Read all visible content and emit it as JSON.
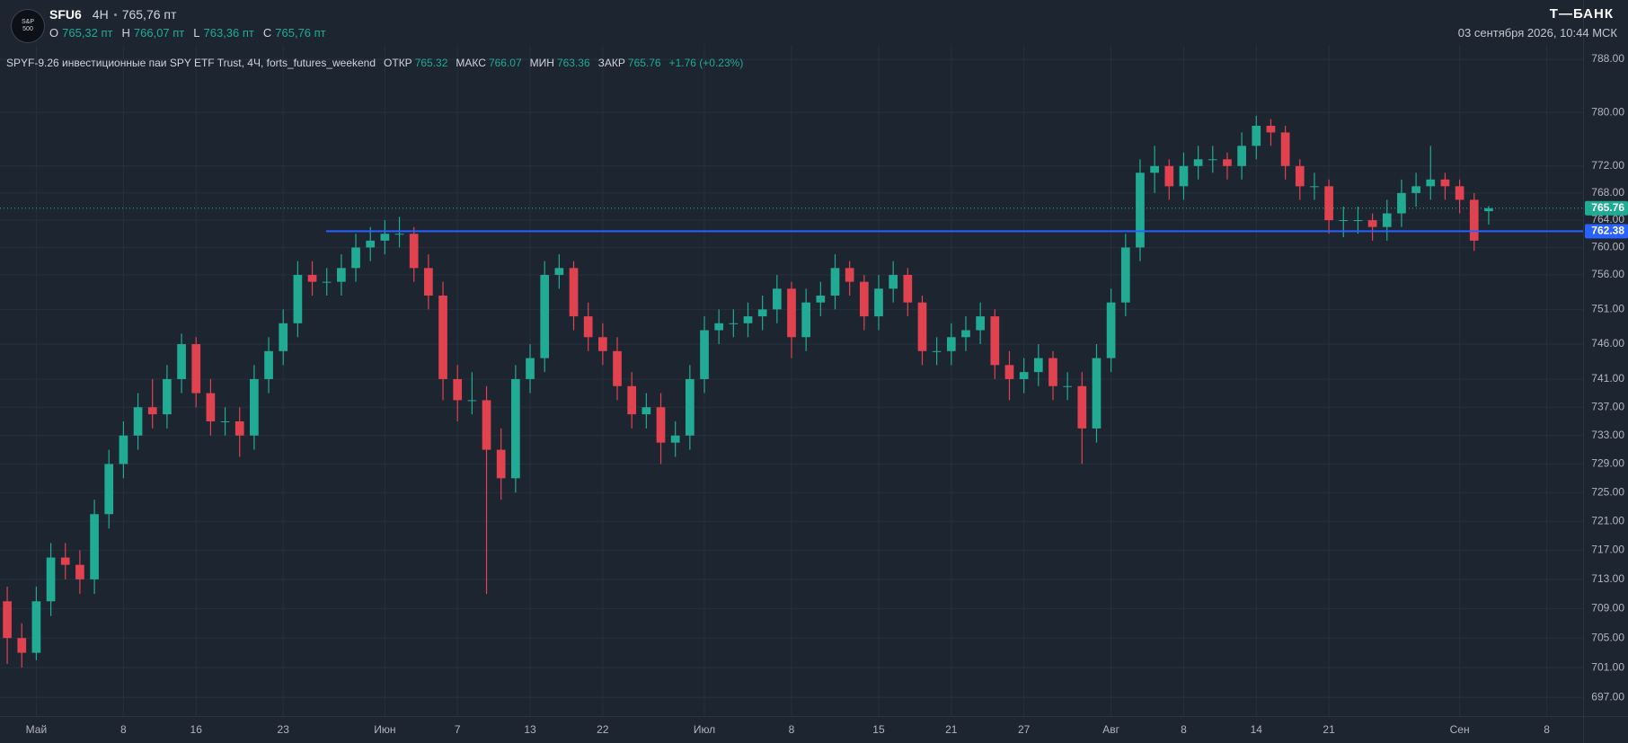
{
  "header": {
    "logo_text": "S&P 500",
    "ticker": "SFU6",
    "interval": "4H",
    "price": "765,76 пт",
    "ohlc": [
      {
        "label": "O",
        "value": "765,32 пт"
      },
      {
        "label": "H",
        "value": "766,07 пт"
      },
      {
        "label": "L",
        "value": "763,36 пт"
      },
      {
        "label": "C",
        "value": "765,76 пт"
      }
    ],
    "brand": "Т—БАНК",
    "datetime": "03 сентября 2026, 10:44 МСК"
  },
  "legend": {
    "title": "SPYF-9.26 инвестиционные паи SPY ETF Trust, 4Ч, forts_futures_weekend",
    "open_label": "ОТКР",
    "high_label": "МАКС",
    "low_label": "МИН",
    "close_label": "ЗАКР",
    "change": "+1.76 (+0.23%)"
  },
  "chart_data": {
    "type": "candlestick",
    "log_scale": true,
    "grid": true,
    "up_color": "#22ab94",
    "down_color": "#e0424f",
    "categories": [
      null,
      null,
      "Май",
      null,
      null,
      null,
      null,
      null,
      "8",
      null,
      null,
      null,
      null,
      "16",
      null,
      null,
      null,
      null,
      null,
      "23",
      null,
      null,
      null,
      null,
      null,
      null,
      "Июн",
      null,
      null,
      null,
      null,
      "7",
      null,
      null,
      null,
      null,
      "13",
      null,
      null,
      null,
      null,
      "22",
      null,
      null,
      null,
      null,
      null,
      null,
      "Июл",
      null,
      null,
      null,
      null,
      null,
      "8",
      null,
      null,
      null,
      null,
      null,
      "15",
      null,
      null,
      null,
      null,
      "21",
      null,
      null,
      null,
      null,
      "27",
      null,
      null,
      null,
      null,
      null,
      "Авг",
      null,
      null,
      null,
      null,
      "8",
      null,
      null,
      null,
      null,
      "14",
      null,
      null,
      null,
      null,
      "21",
      null,
      null,
      null,
      null,
      null,
      null,
      null,
      null,
      "Сен",
      null,
      null,
      null,
      null,
      null,
      "8",
      null,
      null
    ],
    "open": [
      710,
      705,
      703,
      710,
      716,
      715,
      713,
      722,
      729,
      733,
      737,
      736,
      741,
      746,
      739,
      735,
      735,
      733,
      741,
      745,
      749,
      756,
      755,
      755,
      757,
      760,
      761,
      762,
      762,
      757,
      753,
      741,
      738,
      738,
      731,
      727,
      741,
      744,
      756,
      757,
      750,
      747,
      745,
      740,
      736,
      737,
      732,
      733,
      741,
      748,
      749,
      749,
      750,
      751,
      754,
      747,
      752,
      753,
      757,
      755,
      750,
      754,
      756,
      752,
      745,
      745,
      747,
      748,
      750,
      743,
      741,
      742,
      744,
      740,
      740,
      734,
      744,
      752,
      760,
      771,
      772,
      769,
      772,
      773,
      773,
      772,
      775,
      778,
      777,
      772,
      769,
      769,
      764,
      764,
      764,
      763,
      765,
      768,
      769,
      770,
      769,
      767,
      765.32,
      null,
      null,
      null,
      null,
      null,
      null
    ],
    "high": [
      712,
      707,
      712,
      718,
      718,
      717,
      724,
      731,
      735,
      739,
      741,
      743,
      747.5,
      747,
      741,
      737,
      737,
      743,
      747,
      751,
      758,
      758,
      757,
      759,
      762,
      763,
      764,
      764.5,
      763,
      759,
      755,
      743,
      742,
      740,
      734,
      743,
      746,
      758,
      759,
      758,
      752,
      749,
      747,
      742,
      739,
      739,
      735,
      743,
      750,
      751,
      751,
      752,
      753,
      756,
      755,
      754,
      755,
      759,
      758,
      756,
      756,
      758,
      757,
      753,
      747,
      749,
      750,
      752,
      751,
      745,
      744,
      746,
      745,
      742,
      742,
      746,
      754,
      762,
      773,
      775,
      773,
      774,
      775,
      775,
      774,
      777,
      779.5,
      779,
      778,
      773,
      771,
      770,
      766,
      766,
      765,
      767,
      770,
      771,
      775,
      771,
      770,
      768,
      766.07,
      null,
      null,
      null,
      null,
      null,
      null
    ],
    "low": [
      701.5,
      701,
      702,
      708,
      713,
      711,
      711,
      720,
      727,
      731,
      734,
      734,
      739,
      737,
      733,
      733,
      730,
      731,
      739,
      743,
      747,
      753,
      753,
      753,
      755,
      758,
      759,
      760,
      755,
      751,
      738,
      735,
      736,
      711,
      724,
      725,
      739,
      742,
      754,
      748,
      745,
      743,
      738,
      734,
      734,
      729,
      730,
      731,
      739,
      746,
      747,
      747,
      748,
      749,
      744,
      745,
      750,
      751,
      753,
      748,
      748,
      752,
      750,
      743,
      743,
      743,
      745,
      746,
      741,
      738,
      739,
      740,
      738,
      738,
      729,
      732,
      742,
      750,
      758,
      768,
      767,
      767,
      770,
      771,
      770,
      770,
      773,
      775,
      770,
      767,
      767,
      762,
      761.5,
      762,
      761,
      761,
      763,
      766,
      767,
      767,
      765,
      759.5,
      763.36,
      null,
      null,
      null,
      null,
      null,
      null
    ],
    "close": [
      705,
      703,
      710,
      716,
      715,
      713,
      722,
      729,
      733,
      737,
      736,
      741,
      746,
      739,
      735,
      735,
      733,
      741,
      745,
      749,
      756,
      755,
      755,
      757,
      760,
      761,
      762,
      762,
      757,
      753,
      741,
      738,
      738,
      731,
      727,
      741,
      744,
      756,
      757,
      750,
      747,
      745,
      740,
      736,
      737,
      732,
      733,
      741,
      748,
      749,
      749,
      750,
      751,
      754,
      747,
      752,
      753,
      757,
      755,
      750,
      754,
      756,
      752,
      745,
      745,
      747,
      748,
      750,
      743,
      741,
      742,
      744,
      740,
      740,
      734,
      744,
      752,
      760,
      771,
      772,
      769,
      772,
      773,
      773,
      772,
      775,
      778,
      777,
      772,
      769,
      769,
      764,
      764,
      764,
      763,
      765,
      768,
      769,
      770,
      769,
      767,
      761,
      765.76,
      null,
      null,
      null,
      null,
      null,
      null
    ],
    "ylim": [
      694.5,
      789.1
    ],
    "yticks": [
      {
        "value": 788,
        "label": "788.00"
      },
      {
        "value": 780,
        "label": "780.00"
      },
      {
        "value": 772,
        "label": "772.00"
      },
      {
        "value": 768,
        "label": "768.00"
      },
      {
        "value": 764,
        "label": "764.00"
      },
      {
        "value": 760,
        "label": "760.00"
      },
      {
        "value": 756,
        "label": "756.00"
      },
      {
        "value": 751,
        "label": "751.00"
      },
      {
        "value": 746,
        "label": "746.00"
      },
      {
        "value": 741,
        "label": "741.00"
      },
      {
        "value": 737,
        "label": "737.00"
      },
      {
        "value": 733,
        "label": "733.00"
      },
      {
        "value": 729,
        "label": "729.00"
      },
      {
        "value": 725,
        "label": "725.00"
      },
      {
        "value": 721,
        "label": "721.00"
      },
      {
        "value": 717,
        "label": "717.00"
      },
      {
        "value": 713,
        "label": "713.00"
      },
      {
        "value": 709,
        "label": "709.00"
      },
      {
        "value": 705,
        "label": "705.00"
      },
      {
        "value": 701,
        "label": "701.00"
      },
      {
        "value": 697,
        "label": "697.00"
      }
    ],
    "hline": {
      "value": 762.38,
      "color": "#2962ff"
    }
  }
}
